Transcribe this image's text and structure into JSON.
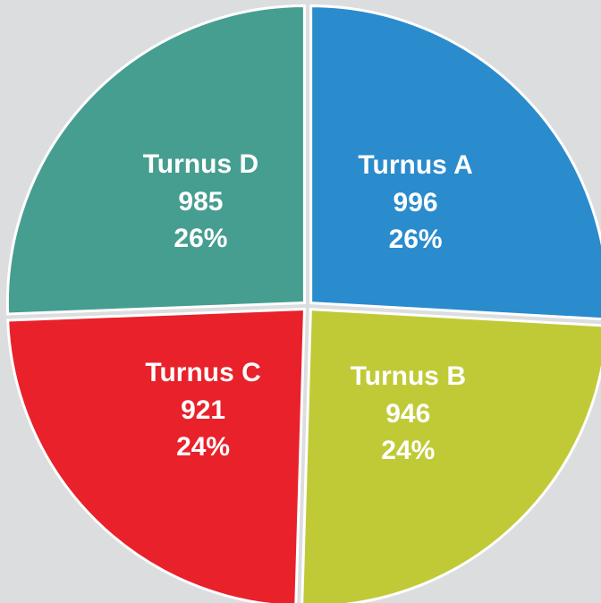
{
  "chart_data": {
    "type": "pie",
    "categories": [
      "Turnus A",
      "Turnus B",
      "Turnus C",
      "Turnus D"
    ],
    "values": [
      996,
      946,
      921,
      985
    ],
    "percent_labels": [
      "26%",
      "24%",
      "24%",
      "26%"
    ],
    "colors": [
      "#2a8bcd",
      "#c0ca37",
      "#e8212a",
      "#469e90"
    ]
  }
}
